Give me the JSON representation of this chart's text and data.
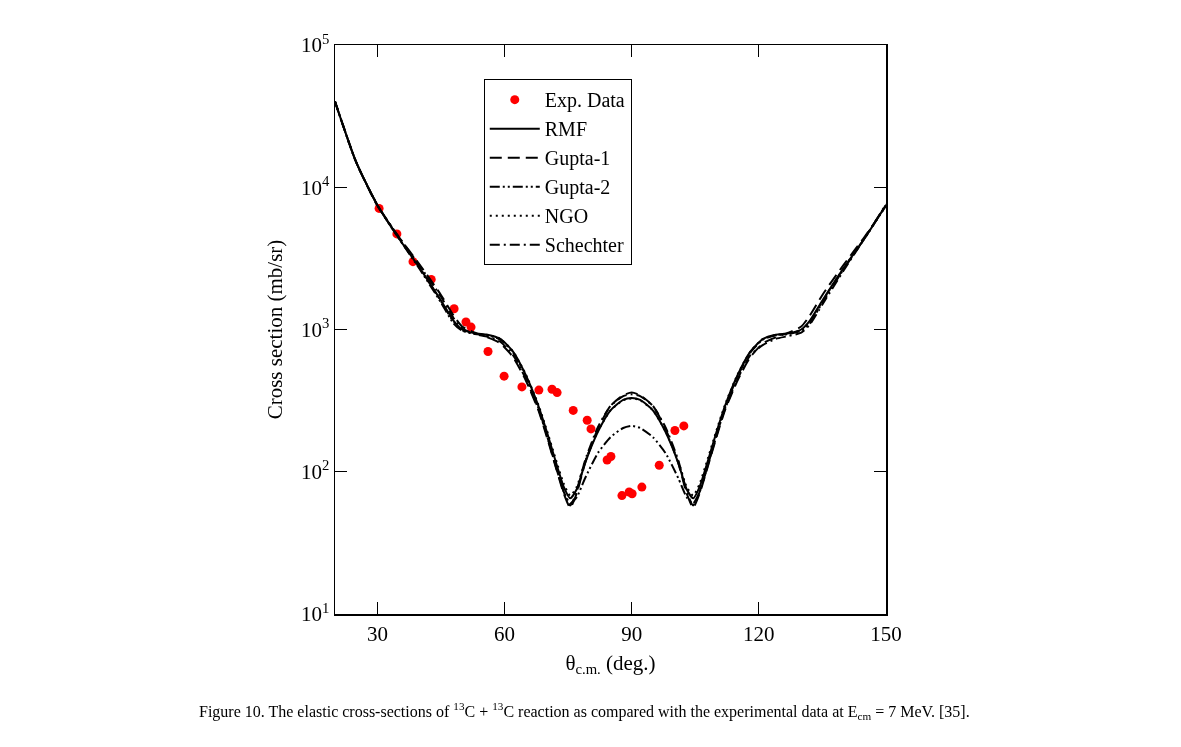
{
  "chart_data": {
    "type": "line",
    "xlabel": "θ$_{c.m.}$ (deg.)",
    "ylabel": "Cross section (mb/sr)",
    "log": "y",
    "xlim": [
      20,
      150
    ],
    "xticks": [
      30,
      60,
      90,
      120,
      150
    ],
    "ylim": [
      10,
      100000
    ],
    "yticks": [
      {
        "value": 10,
        "label": "10$^{1}$"
      },
      {
        "value": 100,
        "label": "10$^{2}$"
      },
      {
        "value": 1000,
        "label": "10$^{3}$"
      },
      {
        "value": 10000,
        "label": "10$^{4}$"
      },
      {
        "value": 100000,
        "label": "10$^{5}$"
      }
    ],
    "grid": false,
    "legend": "top left",
    "x": [
      20,
      25,
      30,
      35,
      40,
      45,
      48,
      50,
      53,
      56,
      59,
      62,
      65,
      68,
      70,
      72,
      74,
      75.5,
      77,
      79,
      82,
      85,
      88,
      90,
      92,
      95,
      98,
      101,
      103,
      104.5,
      106,
      108,
      110,
      112,
      115,
      118,
      121,
      124,
      127,
      130,
      132,
      135,
      140,
      145,
      150
    ],
    "series": [
      {
        "name": "Exp. Data",
        "type": "scatter",
        "marker": "circle",
        "color": "#ff0000",
        "x": [
          30.4,
          34.6,
          38.4,
          42.7,
          48.1,
          50.9,
          52.1,
          56.1,
          59.9,
          64.1,
          68.1,
          71.2,
          72.4,
          76.2,
          79.5,
          80.4,
          84.2,
          85.1,
          87.7,
          89.4,
          90.1,
          92.4,
          96.5,
          100.2,
          102.3
        ],
        "values": [
          7100,
          4700,
          3000,
          2250,
          1400,
          1130,
          1040,
          700,
          470,
          395,
          375,
          380,
          360,
          270,
          230,
          200,
          121,
          128,
          68,
          72,
          70,
          78,
          111,
          195,
          210
        ]
      },
      {
        "name": "RMF",
        "color": "#000000",
        "line_style": "solid",
        "values": [
          40000,
          15000,
          7500,
          4400,
          2700,
          1600,
          1150,
          1000,
          940,
          920,
          860,
          700,
          480,
          290,
          190,
          120,
          78,
          65,
          75,
          115,
          190,
          270,
          320,
          330,
          320,
          270,
          190,
          115,
          75,
          65,
          78,
          120,
          190,
          290,
          480,
          700,
          860,
          920,
          940,
          1000,
          1150,
          1600,
          2700,
          4400,
          7500
        ]
      },
      {
        "name": "Gupta-1",
        "color": "#000000",
        "line_style": "dashed",
        "values": [
          40000,
          15000,
          7400,
          4500,
          2850,
          1750,
          1250,
          1050,
          950,
          880,
          800,
          640,
          440,
          270,
          175,
          110,
          70,
          56,
          70,
          115,
          200,
          290,
          345,
          360,
          345,
          290,
          200,
          115,
          70,
          56,
          70,
          110,
          175,
          270,
          440,
          640,
          800,
          880,
          950,
          1050,
          1250,
          1750,
          2850,
          4500,
          7400
        ]
      },
      {
        "name": "Gupta-2",
        "color": "#000000",
        "line_style": "dashdotdot",
        "values": [
          40000,
          15000,
          7500,
          4400,
          2650,
          1550,
          1100,
          980,
          930,
          910,
          850,
          690,
          470,
          280,
          180,
          112,
          72,
          60,
          66,
          90,
          135,
          175,
          203,
          210,
          203,
          175,
          135,
          90,
          66,
          60,
          72,
          112,
          180,
          280,
          470,
          690,
          850,
          910,
          930,
          980,
          1100,
          1550,
          2650,
          4400,
          7500
        ]
      },
      {
        "name": "NGO",
        "color": "#000000",
        "line_style": "dotted",
        "values": [
          40000,
          15000,
          7450,
          4400,
          2700,
          1580,
          1130,
          990,
          935,
          915,
          860,
          700,
          485,
          295,
          195,
          125,
          82,
          68,
          78,
          118,
          192,
          270,
          318,
          328,
          318,
          270,
          192,
          118,
          78,
          68,
          82,
          125,
          195,
          295,
          485,
          700,
          860,
          915,
          935,
          990,
          1130,
          1580,
          2700,
          4400,
          7450
        ]
      },
      {
        "name": "Schechter",
        "color": "#000000",
        "line_style": "dashdot",
        "values": [
          40000,
          15000,
          7500,
          4500,
          2800,
          1700,
          1200,
          1020,
          930,
          890,
          820,
          660,
          450,
          275,
          180,
          112,
          72,
          58,
          72,
          120,
          205,
          290,
          340,
          350,
          340,
          290,
          205,
          120,
          72,
          58,
          72,
          112,
          180,
          275,
          450,
          660,
          780,
          860,
          900,
          950,
          1080,
          1500,
          2600,
          4400,
          7600
        ]
      }
    ],
    "annotations": [
      "Figure 10. The elastic cross-sections of $^{13}$C + $^{13}$C reaction as compared with the experimental data at E$_{cm}$ = 7 MeV. [35]."
    ]
  }
}
